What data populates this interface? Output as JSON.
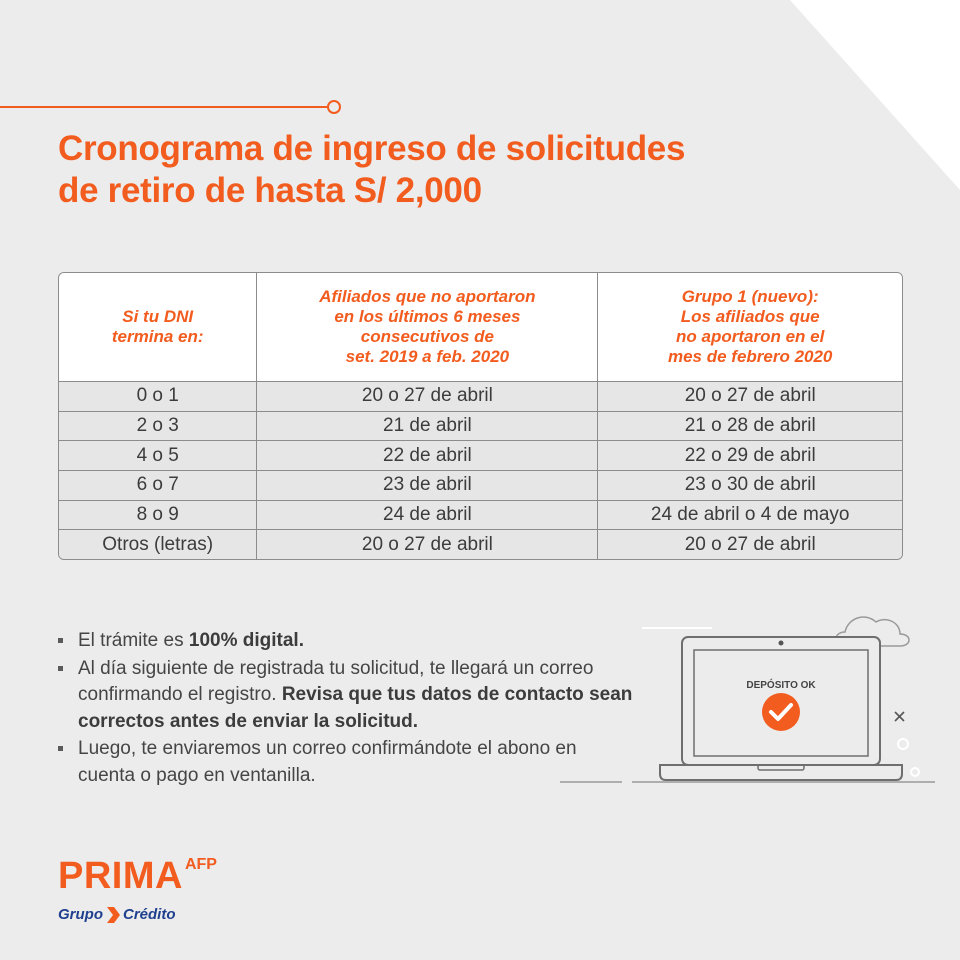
{
  "title": {
    "line1": "Cronograma de ingreso de solicitudes",
    "line2": "de retiro de hasta S/ 2,000"
  },
  "table": {
    "headers": [
      {
        "lines": [
          "Si tu DNI",
          "termina en:"
        ]
      },
      {
        "lines": [
          "Afiliados que no aportaron",
          "en los últimos 6 meses",
          "consecutivos de",
          "set. 2019 a feb. 2020"
        ]
      },
      {
        "lines": [
          "Grupo 1 (nuevo):",
          "Los afiliados que",
          "no aportaron en el",
          "mes de febrero 2020"
        ]
      }
    ],
    "rows": [
      {
        "dni": "0 o 1",
        "group_a": "20 o 27 de abril",
        "group_b": "20 o 27 de abril"
      },
      {
        "dni": "2 o 3",
        "group_a": "21 de abril",
        "group_b": "21 o 28 de abril"
      },
      {
        "dni": "4 o 5",
        "group_a": "22 de abril",
        "group_b": "22 o 29 de abril"
      },
      {
        "dni": "6 o 7",
        "group_a": "23 de abril",
        "group_b": "23 o 30 de abril"
      },
      {
        "dni": "8 o 9",
        "group_a": "24 de abril",
        "group_b": "24 de abril o 4 de mayo"
      },
      {
        "dni": "Otros (letras)",
        "group_a": "20 o 27 de abril",
        "group_b": "20 o 27 de abril"
      }
    ]
  },
  "notes": [
    {
      "text": "El trámite es ",
      "bold": "100% digital."
    },
    {
      "text": "Al día siguiente de registrada tu solicitud, te llegará un correo confirmando el registro. ",
      "bold": "Revisa que tus datos de contacto sean correctos antes de enviar la solicitud."
    },
    {
      "text": "Luego, te enviaremos un correo confirmándote el abono en cuenta o pago en ventanilla.",
      "bold": ""
    }
  ],
  "illustration": {
    "screen_text": "DEPÓSITO OK",
    "icons": [
      "laptop-icon",
      "check-circle-icon",
      "cloud-icon",
      "close-x-icon"
    ]
  },
  "brand": {
    "name": "PRIMA",
    "suffix": "AFP",
    "group_left": "Grupo",
    "group_right": "Crédito"
  },
  "colors": {
    "accent": "#f25c1e",
    "background": "#ececec",
    "brand_blue": "#1f3f8f"
  }
}
